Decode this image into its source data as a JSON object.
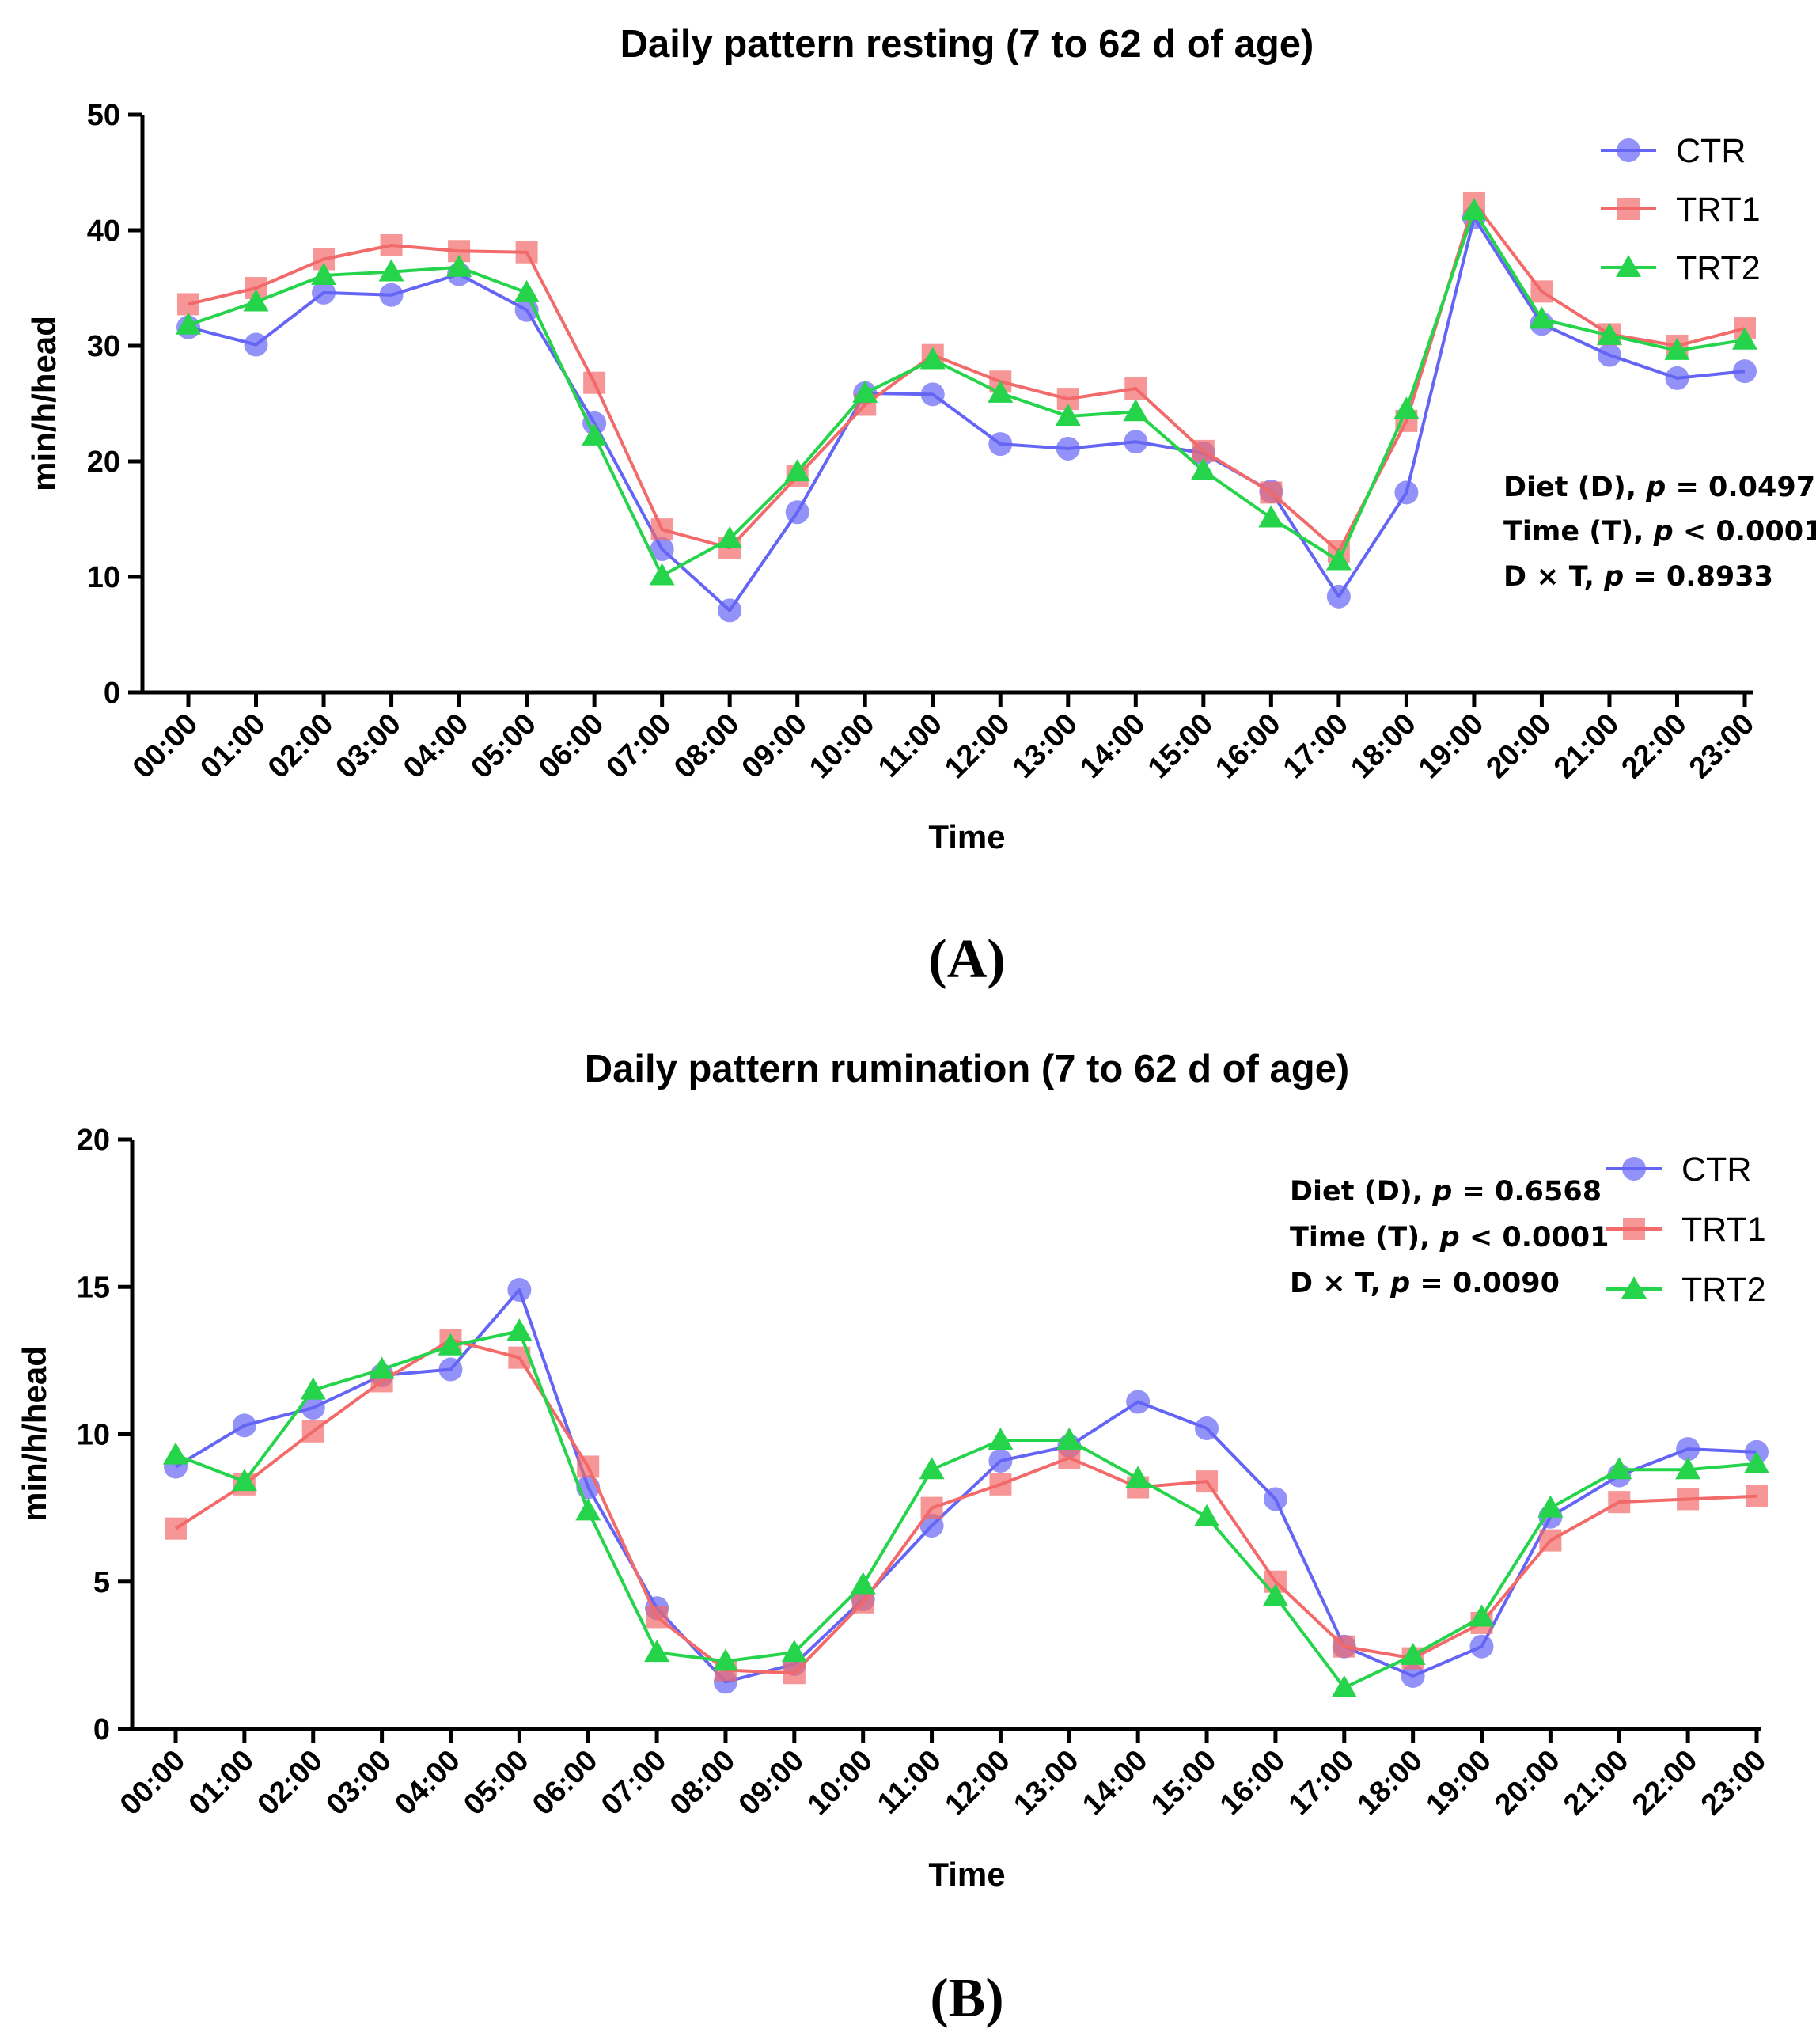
{
  "colors": {
    "CTR": "#6464f5",
    "TRT1": "#f26a6a",
    "TRT2": "#25d44a"
  },
  "chart_data": [
    {
      "type": "line",
      "panel_label": "(A)",
      "title": "Daily pattern resting (7 to 62 d of age)",
      "xlabel": "Time",
      "ylabel": "min/h/head",
      "ylim": [
        0,
        50
      ],
      "yticks": [
        "0",
        "10",
        "20",
        "30",
        "40",
        "50"
      ],
      "categories": [
        "00:00",
        "01:00",
        "02:00",
        "03:00",
        "04:00",
        "05:00",
        "06:00",
        "07:00",
        "08:00",
        "09:00",
        "10:00",
        "11:00",
        "12:00",
        "13:00",
        "14:00",
        "15:00",
        "16:00",
        "17:00",
        "18:00",
        "19:00",
        "20:00",
        "21:00",
        "22:00",
        "23:00"
      ],
      "legend_position": "top-right",
      "series": [
        {
          "name": "CTR",
          "marker": "circle",
          "values": [
            31.6,
            30.1,
            34.6,
            34.4,
            36.2,
            33.1,
            23.3,
            12.4,
            7.1,
            15.6,
            25.9,
            25.8,
            21.5,
            21.1,
            21.7,
            20.7,
            17.4,
            8.3,
            17.3,
            41.1,
            31.9,
            29.2,
            27.2,
            27.8
          ]
        },
        {
          "name": "TRT1",
          "marker": "square",
          "values": [
            33.6,
            35.0,
            37.5,
            38.7,
            38.2,
            38.1,
            26.8,
            14.1,
            12.5,
            18.7,
            24.9,
            29.2,
            26.9,
            25.4,
            26.3,
            20.9,
            17.3,
            12.2,
            23.5,
            42.4,
            34.7,
            31.0,
            30.0,
            31.5
          ]
        },
        {
          "name": "TRT2",
          "marker": "triangle",
          "values": [
            31.8,
            33.8,
            36.1,
            36.4,
            36.8,
            34.6,
            22.2,
            10.1,
            13.3,
            19.1,
            25.9,
            28.8,
            25.9,
            23.9,
            24.3,
            19.2,
            15.1,
            11.4,
            24.5,
            41.7,
            32.3,
            30.9,
            29.6,
            30.5
          ]
        }
      ],
      "annotations": [
        {
          "label": "Diet (D), ",
          "p": "p",
          "value": " = 0.0497"
        },
        {
          "label": "Time (T), ",
          "p": "p",
          "value": " < 0.0001"
        },
        {
          "label": "D × T, ",
          "p": "p",
          "value": " = 0.8933"
        }
      ]
    },
    {
      "type": "line",
      "panel_label": "(B)",
      "title": "Daily pattern rumination (7 to 62 d of age)",
      "xlabel": "Time",
      "ylabel": "min/h/head",
      "ylim": [
        0,
        20
      ],
      "yticks": [
        "0",
        "5",
        "10",
        "15",
        "20"
      ],
      "categories": [
        "00:00",
        "01:00",
        "02:00",
        "03:00",
        "04:00",
        "05:00",
        "06:00",
        "07:00",
        "08:00",
        "09:00",
        "10:00",
        "11:00",
        "12:00",
        "13:00",
        "14:00",
        "15:00",
        "16:00",
        "17:00",
        "18:00",
        "19:00",
        "20:00",
        "21:00",
        "22:00",
        "23:00"
      ],
      "legend_position": "top-right",
      "series": [
        {
          "name": "CTR",
          "marker": "circle",
          "values": [
            8.9,
            10.3,
            10.9,
            12.0,
            12.2,
            14.9,
            8.2,
            4.1,
            1.6,
            2.2,
            4.4,
            6.9,
            9.1,
            9.6,
            11.1,
            10.2,
            7.8,
            2.8,
            1.8,
            2.8,
            7.2,
            8.6,
            9.5,
            9.4
          ]
        },
        {
          "name": "TRT1",
          "marker": "square",
          "values": [
            6.8,
            8.3,
            10.1,
            11.8,
            13.2,
            12.6,
            8.9,
            3.8,
            2.0,
            1.9,
            4.3,
            7.5,
            8.3,
            9.2,
            8.2,
            8.4,
            5.0,
            2.8,
            2.4,
            3.6,
            6.4,
            7.7,
            7.8,
            7.9
          ]
        },
        {
          "name": "TRT2",
          "marker": "triangle",
          "values": [
            9.3,
            8.4,
            11.5,
            12.2,
            13.0,
            13.5,
            7.4,
            2.6,
            2.3,
            2.6,
            4.9,
            8.8,
            9.8,
            9.8,
            8.5,
            7.2,
            4.5,
            1.4,
            2.5,
            3.8,
            7.5,
            8.8,
            8.8,
            9.0
          ]
        }
      ],
      "annotations": [
        {
          "label": "Diet (D), ",
          "p": "p",
          "value": " = 0.6568"
        },
        {
          "label": "Time (T), ",
          "p": "p",
          "value": " < 0.0001"
        },
        {
          "label": "D × T, ",
          "p": "p",
          "value": " = 0.0090"
        }
      ]
    }
  ]
}
